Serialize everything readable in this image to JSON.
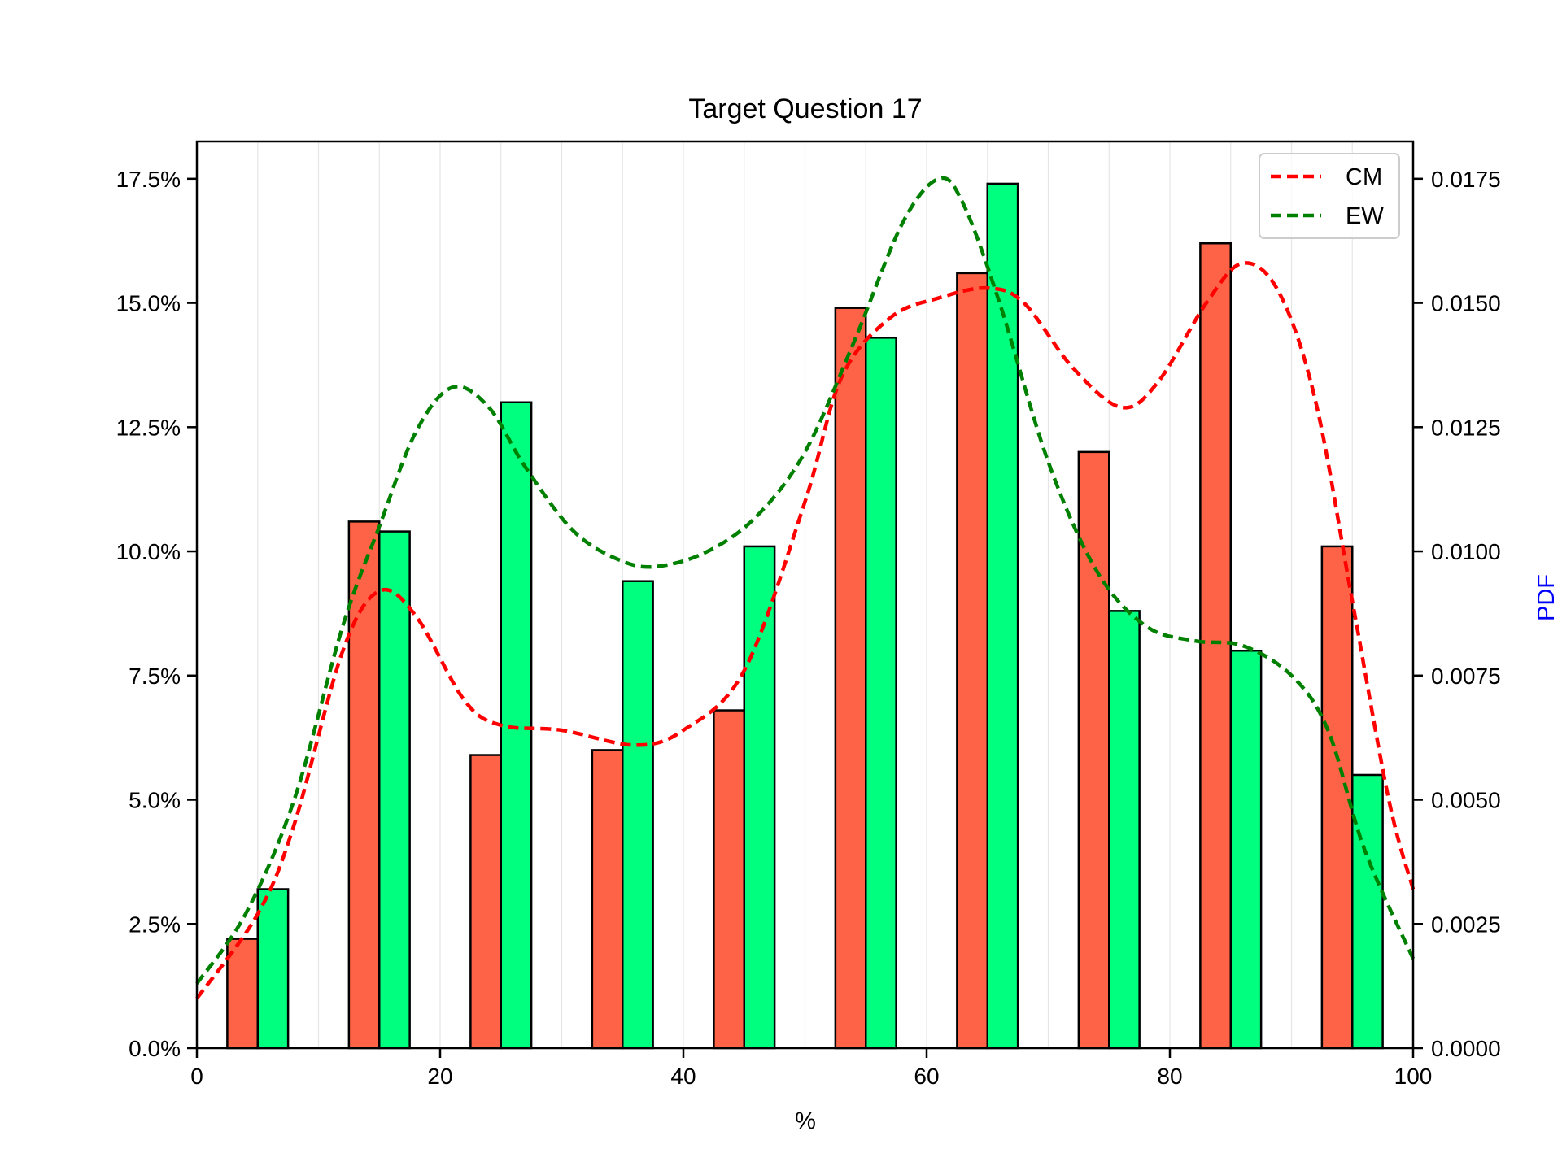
{
  "chart_data": {
    "type": "bar",
    "title": "Target Question 17",
    "xlabel": "%",
    "ylabel": "",
    "y2label": "PDF",
    "xlim": [
      0,
      100
    ],
    "ylim": [
      0,
      0.1825
    ],
    "y2lim": [
      0,
      0.01825
    ],
    "x_ticks": [
      0,
      20,
      40,
      60,
      80,
      100
    ],
    "x_tick_labels": [
      "0",
      "20",
      "40",
      "60",
      "80",
      "100"
    ],
    "y_ticks": [
      0,
      0.025,
      0.05,
      0.075,
      0.1,
      0.125,
      0.15,
      0.175
    ],
    "y_tick_labels": [
      "0.0%",
      "2.5%",
      "5.0%",
      "7.5%",
      "10.0%",
      "12.5%",
      "15.0%",
      "17.5%"
    ],
    "y2_ticks": [
      0,
      0.0025,
      0.005,
      0.0075,
      0.01,
      0.0125,
      0.015,
      0.0175
    ],
    "y2_tick_labels": [
      "0.0000",
      "0.0025",
      "0.0050",
      "0.0075",
      "0.0100",
      "0.0125",
      "0.0150",
      "0.0175"
    ],
    "grid": "vertical minor lines",
    "legend": "top-right",
    "bins": [
      [
        2.5,
        7.5
      ],
      [
        12.5,
        17.5
      ],
      [
        22.5,
        27.5
      ],
      [
        32.5,
        37.5
      ],
      [
        42.5,
        47.5
      ],
      [
        52.5,
        57.5
      ],
      [
        62.5,
        67.5
      ],
      [
        72.5,
        77.5
      ],
      [
        82.5,
        87.5
      ],
      [
        92.5,
        97.5
      ]
    ],
    "series": [
      {
        "name": "CM",
        "bar_color": "#ff6347",
        "line_color": "#ff0000",
        "values": [
          0.022,
          0.106,
          0.059,
          0.06,
          0.068,
          0.149,
          0.156,
          0.12,
          0.162,
          0.101
        ],
        "pdf": [
          [
            0,
            0.001
          ],
          [
            5,
            0.0027
          ],
          [
            8,
            0.0045
          ],
          [
            12,
            0.008
          ],
          [
            15,
            0.0092
          ],
          [
            18,
            0.0087
          ],
          [
            22,
            0.007
          ],
          [
            25,
            0.0065
          ],
          [
            30,
            0.0064
          ],
          [
            36,
            0.0061
          ],
          [
            40,
            0.0064
          ],
          [
            45,
            0.0076
          ],
          [
            50,
            0.011
          ],
          [
            53,
            0.0135
          ],
          [
            57,
            0.0147
          ],
          [
            61,
            0.0151
          ],
          [
            65,
            0.0153
          ],
          [
            68,
            0.015
          ],
          [
            72,
            0.0137
          ],
          [
            76,
            0.0129
          ],
          [
            79,
            0.0134
          ],
          [
            83,
            0.015
          ],
          [
            86,
            0.0158
          ],
          [
            89,
            0.0152
          ],
          [
            92,
            0.013
          ],
          [
            95,
            0.009
          ],
          [
            98,
            0.005
          ],
          [
            100,
            0.0032
          ]
        ]
      },
      {
        "name": "EW",
        "bar_color": "#00ff7f",
        "line_color": "#008000",
        "values": [
          0.032,
          0.104,
          0.13,
          0.094,
          0.101,
          0.143,
          0.174,
          0.088,
          0.08,
          0.055
        ],
        "pdf": [
          [
            0,
            0.0013
          ],
          [
            4,
            0.0027
          ],
          [
            8,
            0.005
          ],
          [
            12,
            0.0085
          ],
          [
            15,
            0.0105
          ],
          [
            18,
            0.0124
          ],
          [
            21,
            0.0133
          ],
          [
            24,
            0.0129
          ],
          [
            27,
            0.0117
          ],
          [
            31,
            0.0104
          ],
          [
            35,
            0.0098
          ],
          [
            38,
            0.0097
          ],
          [
            42,
            0.01
          ],
          [
            46,
            0.0107
          ],
          [
            50,
            0.012
          ],
          [
            54,
            0.0142
          ],
          [
            58,
            0.0166
          ],
          [
            61,
            0.0175
          ],
          [
            63,
            0.017
          ],
          [
            66,
            0.015
          ],
          [
            70,
            0.0118
          ],
          [
            74,
            0.0096
          ],
          [
            78,
            0.0085
          ],
          [
            82,
            0.0082
          ],
          [
            86,
            0.0081
          ],
          [
            90,
            0.0075
          ],
          [
            93,
            0.0064
          ],
          [
            96,
            0.004
          ],
          [
            100,
            0.0018
          ]
        ]
      }
    ]
  }
}
